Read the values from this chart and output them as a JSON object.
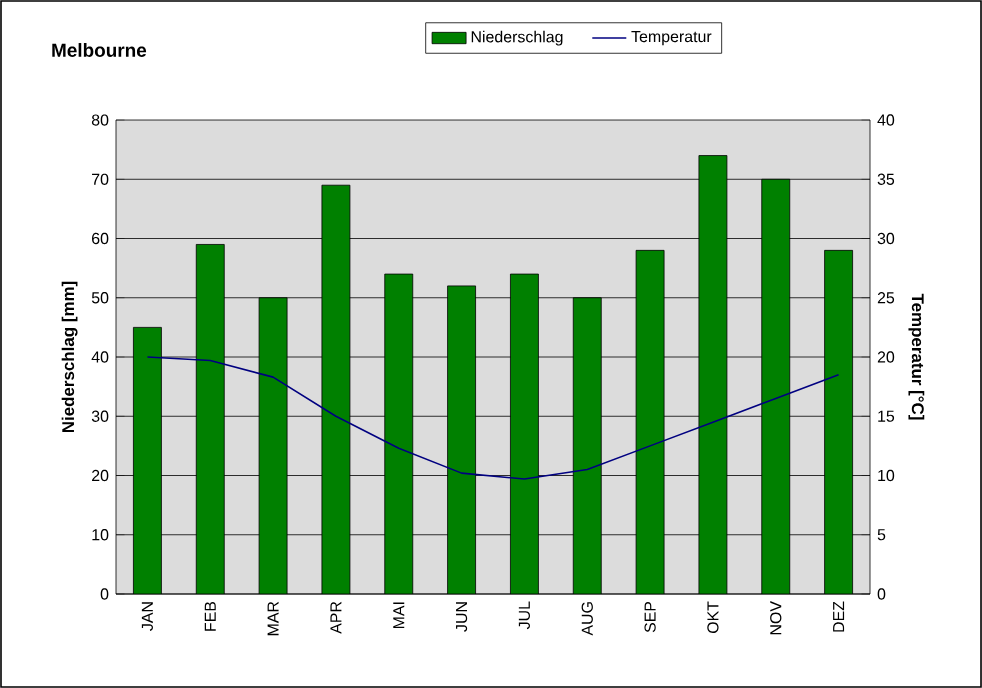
{
  "chart_data": {
    "type": "bar",
    "title": "Melbourne",
    "ylabel": "Niederschlag [mm]",
    "y2label": "Temperatur [°C]",
    "categories": [
      "JAN",
      "FEB",
      "MAR",
      "APR",
      "MAI",
      "JUN",
      "JUL",
      "AUG",
      "SEP",
      "OKT",
      "NOV",
      "DEZ"
    ],
    "series": [
      {
        "name": "Niederschlag",
        "color": "#008000",
        "values": [
          45,
          59,
          50,
          69,
          54,
          52,
          54,
          50,
          58,
          74,
          70,
          58
        ]
      },
      {
        "name": "Temperatur",
        "type": "line",
        "axis": "y2",
        "color": "#000080",
        "values": [
          20,
          19.7,
          18.3,
          15,
          12.3,
          10.2,
          9.7,
          10.5,
          12.5,
          14.5,
          16.5,
          18.5
        ]
      }
    ],
    "ylim": [
      0,
      80
    ],
    "yticks": [
      0,
      10,
      20,
      30,
      40,
      50,
      60,
      70,
      80
    ],
    "y2lim": [
      0,
      40
    ],
    "y2ticks": [
      0,
      5,
      10,
      15,
      20,
      25,
      30,
      35,
      40
    ],
    "grid": "y",
    "legend": "top"
  }
}
